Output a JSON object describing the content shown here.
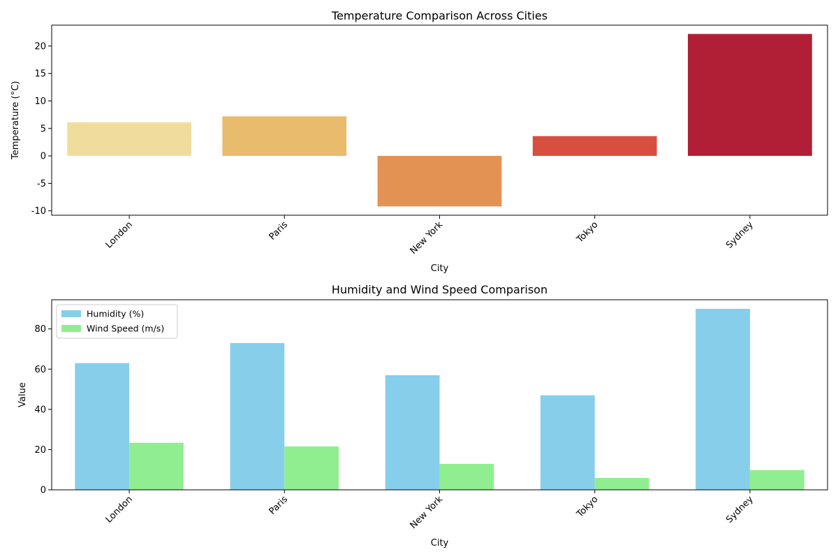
{
  "chart_data": [
    {
      "type": "bar",
      "title": "Temperature Comparison Across Cities",
      "xlabel": "City",
      "ylabel": "Temperature (°C)",
      "categories": [
        "London",
        "Paris",
        "New York",
        "Tokyo",
        "Sydney"
      ],
      "values": [
        6.1,
        7.2,
        -9.2,
        3.6,
        22.2
      ],
      "colors": [
        "#f0dd9e",
        "#e9bb6d",
        "#e49253",
        "#d94f3f",
        "#b01f35"
      ],
      "ylim": [
        -10.8,
        23.8
      ],
      "yticks": [
        -10,
        -5,
        0,
        5,
        10,
        15,
        20
      ],
      "x_tick_rotation": 45,
      "grid": false,
      "legend": "none"
    },
    {
      "type": "bar",
      "title": "Humidity and Wind Speed Comparison",
      "xlabel": "City",
      "ylabel": "Value",
      "categories": [
        "London",
        "Paris",
        "New York",
        "Tokyo",
        "Sydney"
      ],
      "series": [
        {
          "name": "Humidity (%)",
          "color": "#87ceeb",
          "values": [
            63,
            73,
            57,
            47,
            90
          ]
        },
        {
          "name": "Wind Speed (m/s)",
          "color": "#90ee90",
          "values": [
            23.4,
            21.6,
            12.9,
            5.9,
            9.8
          ]
        }
      ],
      "ylim": [
        0,
        94.5
      ],
      "yticks": [
        0,
        20,
        40,
        60,
        80
      ],
      "x_tick_rotation": 45,
      "grid": false,
      "legend": "top-left"
    }
  ]
}
